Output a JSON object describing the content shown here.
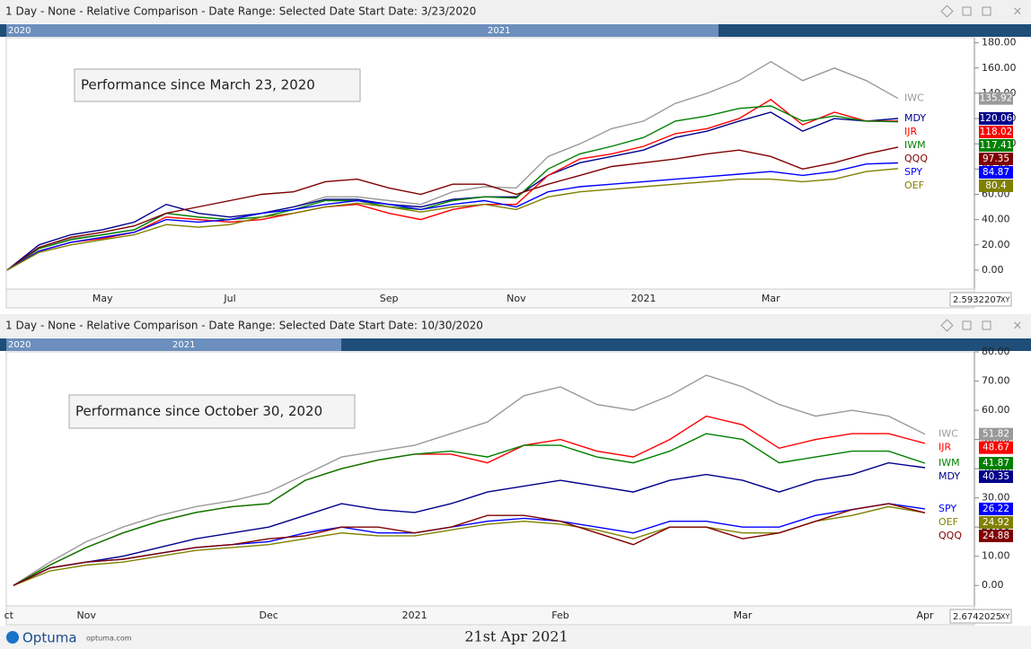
{
  "chart_data": [
    {
      "type": "line",
      "title": "1 Day - None - Relative Comparison - Date Range: Selected Date  Start Date: 3/23/2020",
      "annotation": "Performance since  March 23, 2020",
      "timeline": [
        "2020",
        "2021"
      ],
      "scale_box": "2.5932207",
      "xy_button": "XY",
      "categories": [
        null,
        null,
        null,
        "May",
        null,
        null,
        null,
        "Jul",
        null,
        null,
        null,
        null,
        "Sep",
        null,
        null,
        null,
        "Nov",
        null,
        null,
        null,
        "2021",
        null,
        null,
        null,
        "Mar",
        null,
        null,
        null,
        null
      ],
      "ylim": [
        -15,
        184
      ],
      "yticks": [
        {
          "value": 0,
          "label": "0.00"
        },
        {
          "value": 20,
          "label": "20.00"
        },
        {
          "value": 40,
          "label": "40.00"
        },
        {
          "value": 60,
          "label": "60.00"
        },
        {
          "value": 80,
          "label": "80.00"
        },
        {
          "value": 100,
          "label": "100.00"
        },
        {
          "value": 120,
          "label": "120.00"
        },
        {
          "value": 140,
          "label": "140.00"
        },
        {
          "value": 160,
          "label": "160.00"
        },
        {
          "value": 180,
          "label": "180.00"
        }
      ],
      "series": [
        {
          "name": "IWC",
          "color": "#9a9a9a",
          "values": [
            0,
            18,
            25,
            28,
            32,
            45,
            42,
            40,
            45,
            50,
            58,
            58,
            55,
            52,
            62,
            66,
            65,
            90,
            100,
            112,
            118,
            132,
            140,
            150,
            165,
            150,
            160,
            150,
            135.92
          ]
        },
        {
          "name": "MDY",
          "color": "#00008b",
          "values": [
            0,
            20,
            28,
            32,
            38,
            52,
            45,
            42,
            45,
            50,
            56,
            56,
            52,
            50,
            56,
            58,
            58,
            75,
            85,
            90,
            95,
            105,
            110,
            118,
            125,
            110,
            120,
            118,
            120.06
          ]
        },
        {
          "name": "IJR",
          "color": "#ff0000",
          "values": [
            0,
            15,
            22,
            25,
            30,
            42,
            40,
            38,
            40,
            45,
            50,
            52,
            45,
            40,
            48,
            52,
            52,
            75,
            88,
            92,
            98,
            108,
            112,
            120,
            135,
            115,
            125,
            118,
            118.02
          ]
        },
        {
          "name": "IWM",
          "color": "#008000",
          "values": [
            0,
            17,
            24,
            28,
            32,
            45,
            42,
            40,
            42,
            48,
            55,
            55,
            50,
            48,
            55,
            58,
            57,
            80,
            92,
            98,
            105,
            118,
            122,
            128,
            130,
            118,
            122,
            118,
            117.41
          ]
        },
        {
          "name": "QQQ",
          "color": "#800000",
          "values": [
            0,
            18,
            26,
            30,
            35,
            45,
            50,
            55,
            60,
            62,
            70,
            72,
            65,
            60,
            68,
            68,
            60,
            68,
            75,
            82,
            85,
            88,
            92,
            95,
            90,
            80,
            85,
            92,
            97.35
          ]
        },
        {
          "name": "SPY",
          "color": "#0000ff",
          "values": [
            0,
            15,
            22,
            26,
            30,
            40,
            38,
            40,
            45,
            48,
            52,
            55,
            52,
            48,
            52,
            55,
            50,
            62,
            66,
            68,
            70,
            72,
            74,
            76,
            78,
            75,
            78,
            84,
            84.87
          ]
        },
        {
          "name": "OEF",
          "color": "#808000",
          "values": [
            0,
            14,
            20,
            24,
            28,
            36,
            34,
            36,
            42,
            45,
            50,
            53,
            50,
            46,
            50,
            52,
            48,
            58,
            62,
            64,
            66,
            68,
            70,
            72,
            72,
            70,
            72,
            78,
            80.4
          ]
        }
      ]
    },
    {
      "type": "line",
      "title": "1 Day - None - Relative Comparison - Date Range: Selected Date  Start Date: 10/30/2020",
      "annotation": "Performance since  October 30, 2020",
      "timeline": [
        "2020",
        "2021"
      ],
      "scale_box": "2.6742025",
      "xy_button": "XY",
      "categories": [
        "ct",
        null,
        "Nov",
        null,
        null,
        null,
        null,
        "Dec",
        null,
        null,
        null,
        "2021",
        null,
        null,
        null,
        "Feb",
        null,
        null,
        null,
        null,
        "Mar",
        null,
        null,
        null,
        null,
        "Apr"
      ],
      "ylim": [
        -7,
        80
      ],
      "yticks": [
        {
          "value": 0,
          "label": "0.00"
        },
        {
          "value": 10,
          "label": "10.00"
        },
        {
          "value": 20,
          "label": "20.00"
        },
        {
          "value": 30,
          "label": "30.00"
        },
        {
          "value": 40,
          "label": "40.00"
        },
        {
          "value": 50,
          "label": "50.00"
        },
        {
          "value": 60,
          "label": "60.00"
        },
        {
          "value": 70,
          "label": "70.00"
        },
        {
          "value": 80,
          "label": "80.00"
        }
      ],
      "series": [
        {
          "name": "IWC",
          "color": "#9a9a9a",
          "values": [
            0,
            8,
            15,
            20,
            24,
            27,
            29,
            32,
            38,
            44,
            46,
            48,
            52,
            56,
            65,
            68,
            62,
            60,
            65,
            72,
            68,
            62,
            58,
            60,
            58,
            51.82
          ]
        },
        {
          "name": "IJR",
          "color": "#ff0000",
          "values": [
            0,
            7,
            13,
            18,
            22,
            25,
            27,
            28,
            36,
            40,
            43,
            45,
            45,
            42,
            48,
            50,
            46,
            44,
            50,
            58,
            55,
            47,
            50,
            52,
            52,
            48.67
          ]
        },
        {
          "name": "IWM",
          "color": "#008000",
          "values": [
            0,
            7,
            13,
            18,
            22,
            25,
            27,
            28,
            36,
            40,
            43,
            45,
            46,
            44,
            48,
            48,
            44,
            42,
            46,
            52,
            50,
            42,
            44,
            46,
            46,
            41.87
          ]
        },
        {
          "name": "MDY",
          "color": "#00008b",
          "values": [
            0,
            6,
            8,
            10,
            13,
            16,
            18,
            20,
            24,
            28,
            26,
            25,
            28,
            32,
            34,
            36,
            34,
            32,
            36,
            38,
            36,
            32,
            36,
            38,
            42,
            40.35
          ]
        },
        {
          "name": "SPY",
          "color": "#0000ff",
          "values": [
            0,
            6,
            8,
            9,
            11,
            13,
            14,
            15,
            18,
            20,
            18,
            18,
            20,
            22,
            23,
            22,
            20,
            18,
            22,
            22,
            20,
            20,
            24,
            26,
            28,
            26.22
          ]
        },
        {
          "name": "OEF",
          "color": "#808000",
          "values": [
            0,
            5,
            7,
            8,
            10,
            12,
            13,
            14,
            16,
            18,
            17,
            17,
            19,
            21,
            22,
            21,
            19,
            16,
            20,
            20,
            18,
            18,
            22,
            24,
            27,
            24.92
          ]
        },
        {
          "name": "QQQ",
          "color": "#800000",
          "values": [
            0,
            6,
            8,
            9,
            11,
            13,
            14,
            16,
            17,
            20,
            20,
            18,
            20,
            24,
            24,
            22,
            18,
            14,
            20,
            20,
            16,
            18,
            22,
            26,
            28,
            24.88
          ]
        }
      ]
    }
  ],
  "footer": {
    "brand": "Optuma",
    "site": "optuma.com",
    "date": "21st Apr 2021"
  }
}
